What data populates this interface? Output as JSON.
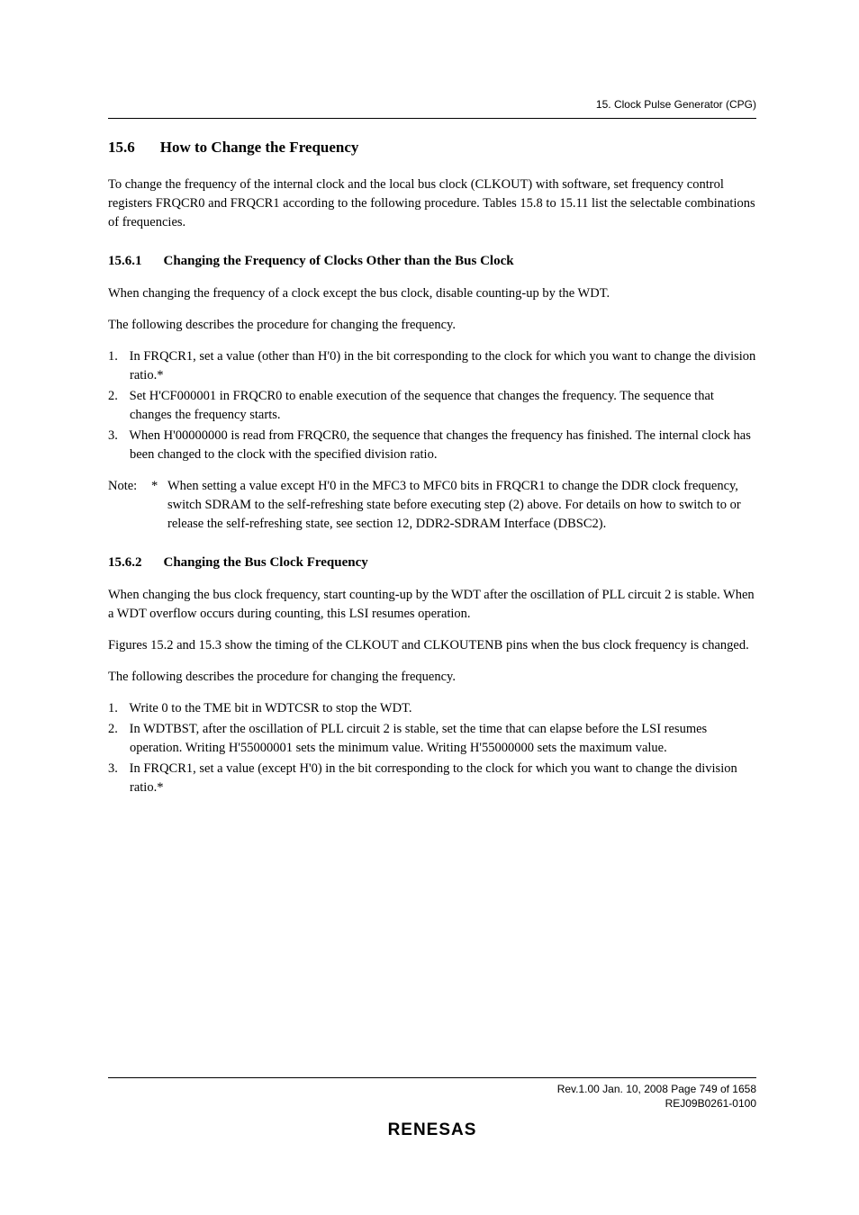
{
  "header": {
    "chapter": "15.   Clock Pulse Generator (CPG)"
  },
  "section": {
    "number": "15.6",
    "title": "How to Change the Frequency"
  },
  "intro": "To change the frequency of the internal clock and the local bus clock (CLKOUT) with software, set frequency control registers FRQCR0 and FRQCR1 according to the following procedure. Tables 15.8 to 15.11 list the selectable combinations of frequencies.",
  "sub1": {
    "number": "15.6.1",
    "title": "Changing the Frequency of Clocks Other than the Bus Clock",
    "p1": "When changing the frequency of a clock except the bus clock, disable counting-up by the WDT.",
    "p2": "The following describes the procedure for changing the frequency.",
    "list": [
      "In FRQCR1, set a value (other than H'0) in the bit corresponding to the clock for which you want to change the division ratio.*",
      "Set H'CF000001 in FRQCR0 to enable execution of the sequence that changes the frequency. The sequence that changes the frequency starts.",
      "When H'00000000 is read from FRQCR0, the sequence that changes the frequency has finished. The internal clock has been changed to the clock with the specified division ratio."
    ],
    "note_label": "Note:",
    "note_star": "*",
    "note_body": "When setting a value except H'0 in the MFC3 to MFC0 bits in FRQCR1 to change the DDR clock frequency, switch SDRAM to the self-refreshing state before executing step (2) above. For details on how to switch to or release the self-refreshing state, see section 12, DDR2-SDRAM Interface (DBSC2)."
  },
  "sub2": {
    "number": "15.6.2",
    "title": "Changing the Bus Clock Frequency",
    "p1": "When changing the bus clock frequency, start counting-up by the WDT after the oscillation of PLL circuit 2 is stable. When a WDT overflow occurs during counting, this LSI resumes operation.",
    "p2": "Figures 15.2 and 15.3 show the timing of the CLKOUT and CLKOUTENB pins when the bus clock frequency is changed.",
    "p3": "The following describes the procedure for changing the frequency.",
    "list": [
      "Write 0 to the TME bit in WDTCSR to stop the WDT.",
      "In WDTBST, after the oscillation of PLL circuit 2 is stable, set the time that can elapse before the LSI resumes operation. Writing H'55000001 sets the minimum value. Writing H'55000000 sets the maximum value.",
      "In FRQCR1, set a value (except H'0) in the bit corresponding to the clock for which you want to change the division ratio.*"
    ]
  },
  "footer": {
    "line1": "Rev.1.00  Jan. 10, 2008  Page 749 of 1658",
    "line2": "REJ09B0261-0100",
    "logo": "RENESAS"
  }
}
